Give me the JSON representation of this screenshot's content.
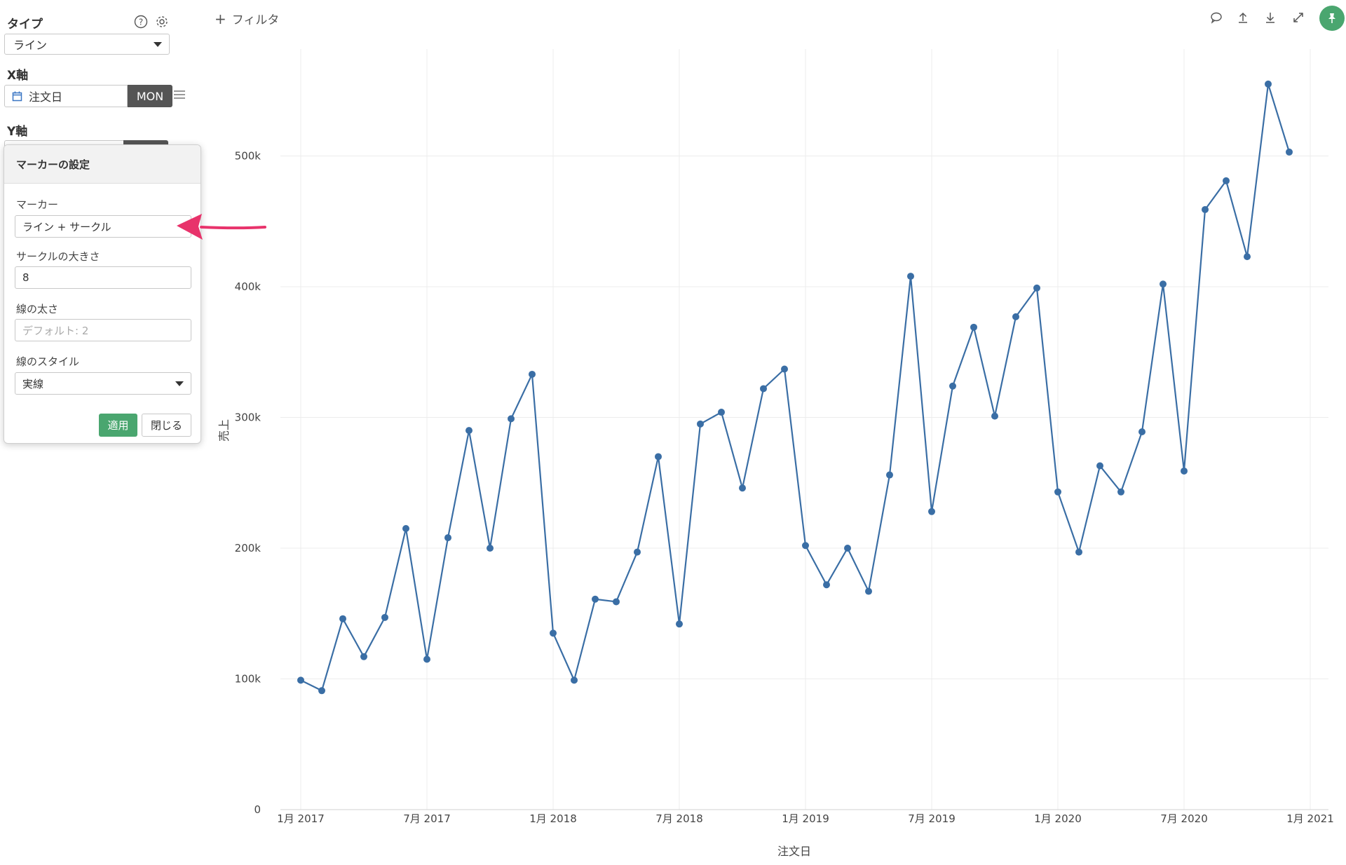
{
  "sidebar": {
    "type_label": "タイプ",
    "type_value": "ライン",
    "x_axis_label": "X軸",
    "x_field": "注文日",
    "x_field_tag": "MON",
    "y_axis_label": "Y軸"
  },
  "popover": {
    "title": "マーカーの設定",
    "marker_label": "マーカー",
    "marker_value": "ライン + サークル",
    "circle_size_label": "サークルの大きさ",
    "circle_size_value": "8",
    "line_width_label": "線の太さ",
    "line_width_placeholder": "デフォルト: 2",
    "line_style_label": "線のスタイル",
    "line_style_value": "実線",
    "apply_label": "適用",
    "close_label": "閉じる"
  },
  "toolbar": {
    "filter_label": "フィルタ"
  },
  "colors": {
    "series": "#3a6ea5",
    "accent": "#4aa66f",
    "arrow": "#e8336b"
  },
  "chart_data": {
    "type": "line",
    "xlabel": "注文日",
    "ylabel": "売上",
    "x_tick_labels": [
      "1月 2017",
      "7月 2017",
      "1月 2018",
      "7月 2018",
      "1月 2019",
      "7月 2019",
      "1月 2020",
      "7月 2020",
      "1月 2021"
    ],
    "y_tick_labels": [
      "0",
      "100k",
      "200k",
      "300k",
      "400k",
      "500k"
    ],
    "ylim": [
      0,
      560000
    ],
    "grid": true,
    "series": [
      {
        "x": [
          "2017-01",
          "2017-02",
          "2017-03",
          "2017-04",
          "2017-05",
          "2017-06",
          "2017-07",
          "2017-08",
          "2017-09",
          "2017-10",
          "2017-11",
          "2017-12",
          "2018-01",
          "2018-02",
          "2018-03",
          "2018-04",
          "2018-05",
          "2018-06",
          "2018-07",
          "2018-08",
          "2018-09",
          "2018-10",
          "2018-11",
          "2018-12",
          "2019-01",
          "2019-02",
          "2019-03",
          "2019-04",
          "2019-05",
          "2019-06",
          "2019-07",
          "2019-08",
          "2019-09",
          "2019-10",
          "2019-11",
          "2019-12",
          "2020-01",
          "2020-02",
          "2020-03",
          "2020-04",
          "2020-05",
          "2020-06",
          "2020-07",
          "2020-08",
          "2020-09",
          "2020-10",
          "2020-11",
          "2020-12"
        ],
        "values": [
          99000,
          91000,
          146000,
          117000,
          147000,
          215000,
          115000,
          208000,
          290000,
          200000,
          299000,
          333000,
          135000,
          99000,
          161000,
          159000,
          197000,
          270000,
          142000,
          295000,
          304000,
          246000,
          322000,
          337000,
          202000,
          172000,
          200000,
          167000,
          256000,
          408000,
          228000,
          324000,
          369000,
          301000,
          377000,
          399000,
          243000,
          197000,
          263000,
          243000,
          289000,
          402000,
          259000,
          459000,
          481000,
          423000,
          555000,
          503000
        ]
      }
    ]
  }
}
